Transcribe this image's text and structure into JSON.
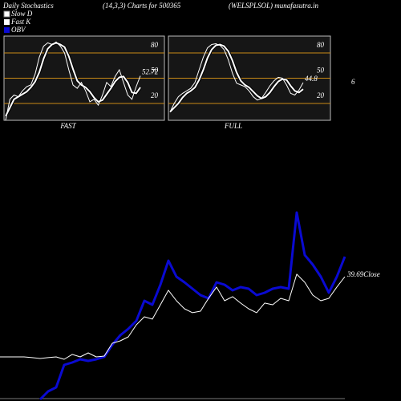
{
  "header": {
    "title": "Daily Stochastics",
    "subtitle": "(14,3,3) Charts for 500365",
    "source": "(WELSPLSOL) munafasutra.in",
    "side_label": "6"
  },
  "chart_data": [
    {
      "type": "line",
      "title": "FAST",
      "ylim": [
        0,
        100
      ],
      "yticks": [
        80,
        50,
        20
      ],
      "grid_color": "#c98a16",
      "categories": [
        null,
        null,
        null,
        null,
        null,
        null,
        null,
        null,
        null,
        null,
        null,
        null,
        null,
        null,
        null,
        null,
        null,
        null,
        null,
        null,
        null,
        null,
        null,
        null,
        null,
        null,
        null,
        null,
        null,
        null,
        null,
        null,
        null
      ],
      "series": [
        {
          "name": "Slow D",
          "color": "#ffffff",
          "values": [
            5,
            15,
            25,
            28,
            31,
            34,
            39,
            46,
            57,
            73,
            85,
            90,
            92,
            90,
            87,
            76,
            61,
            47,
            42,
            39,
            34,
            27,
            22,
            24,
            31,
            38,
            46,
            51,
            52,
            45,
            33,
            32,
            39
          ]
        },
        {
          "name": "Fast K",
          "color": "#ffffff",
          "values": [
            0,
            25,
            30,
            28,
            35,
            40,
            42,
            55,
            75,
            88,
            92,
            90,
            93,
            88,
            80,
            60,
            42,
            38,
            45,
            35,
            22,
            25,
            18,
            30,
            45,
            40,
            52,
            60,
            45,
            30,
            25,
            40,
            52.72
          ]
        }
      ]
    },
    {
      "type": "line",
      "title": "FULL",
      "ylim": [
        0,
        100
      ],
      "yticks": [
        80,
        50,
        20
      ],
      "grid_color": "#c98a16",
      "categories": [
        null,
        null,
        null,
        null,
        null,
        null,
        null,
        null,
        null,
        null,
        null,
        null,
        null,
        null,
        null,
        null,
        null,
        null,
        null,
        null,
        null,
        null,
        null,
        null,
        null,
        null,
        null,
        null,
        null,
        null,
        null,
        null,
        null
      ],
      "series": [
        {
          "name": "Slow D",
          "color": "#ffffff",
          "values": [
            10,
            15,
            20,
            27,
            32,
            35,
            39,
            48,
            60,
            74,
            84,
            89,
            90,
            88,
            82,
            71,
            57,
            47,
            42,
            39,
            34,
            29,
            26,
            28,
            33,
            40,
            46,
            49,
            48,
            41,
            35,
            33,
            37
          ]
        },
        {
          "name": "Fast K",
          "color": "#ffffff",
          "values": [
            10,
            20,
            28,
            32,
            35,
            38,
            45,
            60,
            75,
            86,
            90,
            91,
            89,
            84,
            72,
            56,
            44,
            42,
            40,
            35,
            28,
            24,
            26,
            33,
            41,
            47,
            51,
            50,
            42,
            32,
            30,
            36,
            44.8
          ]
        }
      ]
    },
    {
      "type": "line",
      "ylim": [
        0,
        240
      ],
      "y2lim": [
        30,
        45
      ],
      "categories": [
        null,
        null,
        null,
        null,
        null,
        null,
        null,
        null,
        null,
        null,
        null,
        null,
        null,
        null,
        null,
        null,
        null,
        null,
        null,
        null,
        null,
        null,
        null,
        null,
        null,
        null,
        null,
        null,
        null,
        null,
        null,
        null,
        null,
        null,
        null,
        null,
        null,
        null,
        null,
        null,
        null,
        null,
        null,
        null
      ],
      "series": [
        {
          "name": "OBV",
          "color": "#0a0ad2",
          "values": [
            null,
            null,
            null,
            null,
            null,
            2,
            12,
            17,
            45,
            48,
            52,
            50,
            52,
            55,
            70,
            82,
            90,
            100,
            125,
            120,
            145,
            175,
            155,
            148,
            140,
            132,
            128,
            148,
            145,
            138,
            142,
            140,
            132,
            135,
            140,
            142,
            140,
            235,
            182,
            170,
            155,
            135,
            155,
            180
          ]
        },
        {
          "name": "Close",
          "color": "#ffffff",
          "axis": "y2",
          "values": [
            33.44,
            33.44,
            33.44,
            33.44,
            33.38,
            33.31,
            33.38,
            33.44,
            33.25,
            33.63,
            33.44,
            33.75,
            33.44,
            33.5,
            34.5,
            34.69,
            35,
            35.94,
            36.56,
            36.38,
            37.5,
            38.63,
            37.81,
            37.19,
            36.88,
            37,
            38,
            38.88,
            37.81,
            38.13,
            37.63,
            37.19,
            36.88,
            37.63,
            37.5,
            38,
            37.81,
            39.88,
            39.25,
            38.25,
            37.81,
            38,
            38.88,
            39.69
          ]
        }
      ]
    }
  ]
}
